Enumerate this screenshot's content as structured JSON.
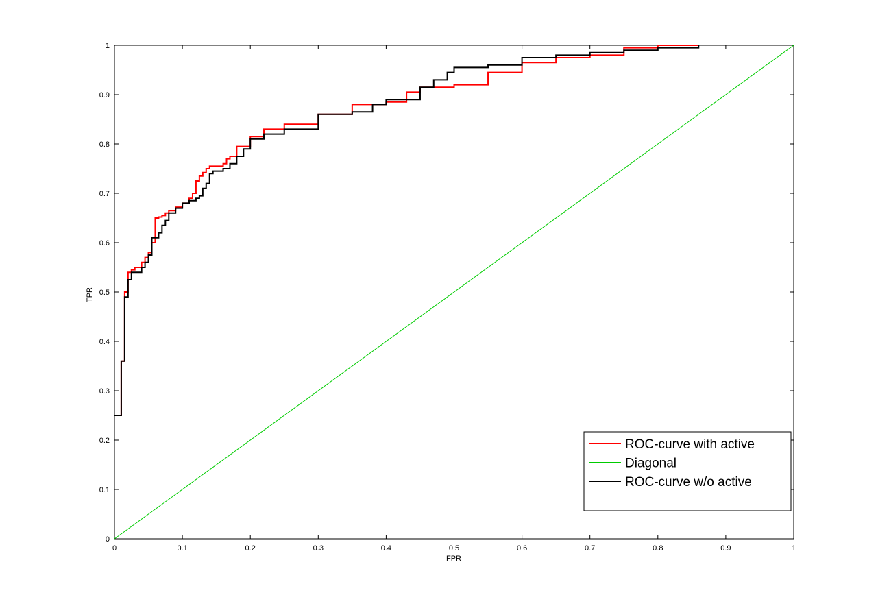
{
  "chart_data": {
    "type": "line",
    "xlabel": "FPR",
    "ylabel": "TPR",
    "xlim": [
      0,
      1
    ],
    "ylim": [
      0,
      1
    ],
    "xticks": [
      "0",
      "0.1",
      "0.2",
      "0.3",
      "0.4",
      "0.5",
      "0.6",
      "0.7",
      "0.8",
      "0.9",
      "1"
    ],
    "yticks": [
      "0",
      "0.1",
      "0.2",
      "0.3",
      "0.4",
      "0.5",
      "0.6",
      "0.7",
      "0.8",
      "0.9",
      "1"
    ],
    "grid": false,
    "legend_position": "bottom-right",
    "series": [
      {
        "name": "ROC-curve with active",
        "color": "#ff0000",
        "x": [
          0,
          0.01,
          0.01,
          0.015,
          0.015,
          0.02,
          0.02,
          0.025,
          0.03,
          0.035,
          0.04,
          0.045,
          0.05,
          0.055,
          0.06,
          0.065,
          0.07,
          0.075,
          0.08,
          0.09,
          0.1,
          0.11,
          0.115,
          0.12,
          0.125,
          0.13,
          0.135,
          0.14,
          0.15,
          0.16,
          0.165,
          0.17,
          0.18,
          0.2,
          0.22,
          0.25,
          0.3,
          0.35,
          0.4,
          0.43,
          0.45,
          0.5,
          0.55,
          0.6,
          0.65,
          0.7,
          0.75,
          0.8,
          0.86
        ],
        "y": [
          0.25,
          0.25,
          0.36,
          0.36,
          0.5,
          0.5,
          0.54,
          0.545,
          0.55,
          0.55,
          0.56,
          0.57,
          0.58,
          0.6,
          0.65,
          0.652,
          0.655,
          0.66,
          0.665,
          0.672,
          0.68,
          0.69,
          0.7,
          0.725,
          0.735,
          0.742,
          0.75,
          0.755,
          0.755,
          0.76,
          0.77,
          0.775,
          0.795,
          0.815,
          0.83,
          0.84,
          0.86,
          0.88,
          0.885,
          0.905,
          0.915,
          0.92,
          0.945,
          0.965,
          0.975,
          0.98,
          0.995,
          1.0,
          1.0
        ]
      },
      {
        "name": "Diagonal",
        "color": "#00cc00",
        "x": [
          0,
          1
        ],
        "y": [
          0,
          1
        ]
      },
      {
        "name": "ROC-curve w/o active",
        "color": "#000000",
        "x": [
          0,
          0.01,
          0.01,
          0.015,
          0.015,
          0.02,
          0.02,
          0.025,
          0.03,
          0.04,
          0.045,
          0.05,
          0.055,
          0.06,
          0.065,
          0.07,
          0.075,
          0.08,
          0.09,
          0.1,
          0.11,
          0.12,
          0.125,
          0.13,
          0.135,
          0.14,
          0.145,
          0.15,
          0.16,
          0.17,
          0.18,
          0.19,
          0.2,
          0.22,
          0.25,
          0.3,
          0.35,
          0.38,
          0.4,
          0.45,
          0.47,
          0.49,
          0.5,
          0.55,
          0.6,
          0.65,
          0.7,
          0.75,
          0.8,
          0.86
        ],
        "y": [
          0.25,
          0.25,
          0.36,
          0.36,
          0.49,
          0.49,
          0.525,
          0.54,
          0.54,
          0.55,
          0.56,
          0.575,
          0.61,
          0.61,
          0.62,
          0.635,
          0.645,
          0.66,
          0.67,
          0.68,
          0.685,
          0.69,
          0.695,
          0.71,
          0.72,
          0.74,
          0.745,
          0.745,
          0.75,
          0.76,
          0.775,
          0.79,
          0.81,
          0.82,
          0.83,
          0.86,
          0.865,
          0.88,
          0.89,
          0.915,
          0.93,
          0.945,
          0.955,
          0.96,
          0.975,
          0.98,
          0.985,
          0.99,
          0.995,
          1.0
        ]
      },
      {
        "name": "",
        "color": "#00cc00",
        "x": [],
        "y": []
      }
    ]
  }
}
